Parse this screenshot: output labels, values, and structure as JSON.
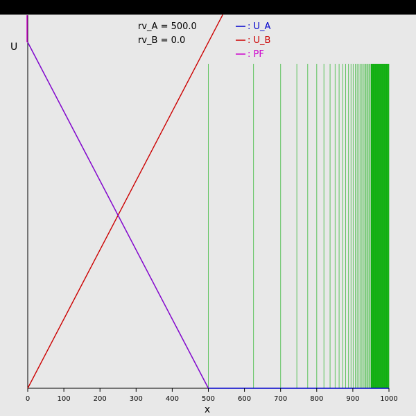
{
  "chart_data": {
    "type": "line",
    "xlabel": "x",
    "ylabel": "U",
    "xlim": [
      0,
      1000
    ],
    "x_ticks": [
      "0",
      "100",
      "200",
      "300",
      "400",
      "500",
      "600",
      "700",
      "800",
      "900",
      "1000"
    ],
    "annotations": [
      "rv_A = 500.0",
      "rv_B = 0.0"
    ],
    "legend_position": "top",
    "series": [
      {
        "name": ": U_A",
        "color": "#0000cc",
        "x": [
          0,
          500,
          1000
        ],
        "y": [
          1,
          0,
          0
        ]
      },
      {
        "name": ": U_B",
        "color": "#cc0000",
        "x": [
          0,
          540
        ],
        "y": [
          0,
          1.08
        ]
      },
      {
        "name": ": PF",
        "color": "#cc00cc",
        "x": [
          0,
          500
        ],
        "y": [
          1,
          0
        ]
      }
    ],
    "vertical_lines": {
      "color": "#00aa00",
      "x": [
        500,
        625,
        700,
        745,
        775,
        800,
        820,
        837,
        851,
        862,
        872,
        880,
        888,
        895,
        901,
        907,
        912,
        917,
        921,
        925,
        929,
        933,
        936,
        939,
        942,
        945,
        948,
        951,
        954,
        957,
        960,
        963,
        966,
        969,
        972,
        975,
        978,
        981,
        984,
        987,
        990,
        993,
        996,
        1000
      ]
    }
  }
}
